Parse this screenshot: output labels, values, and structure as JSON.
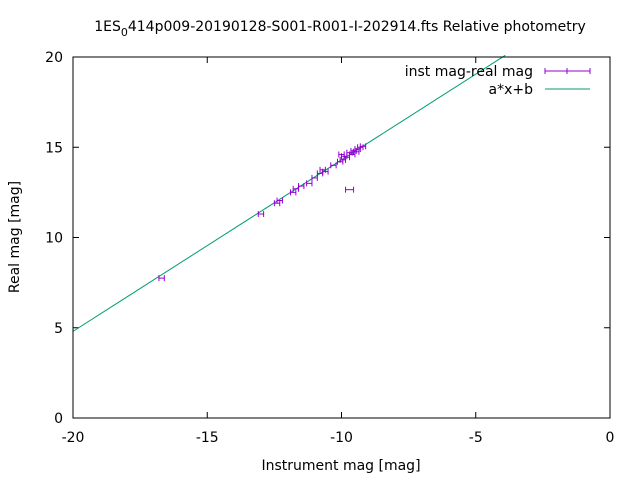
{
  "chart_data": {
    "type": "scatter",
    "title_main": "1ES",
    "title_sub": "0",
    "title_rest": "414p009-20190128-S001-R001-I-202914.fts Relative photometry",
    "xlabel": "Instrument mag [mag]",
    "ylabel": "Real mag [mag]",
    "xlim": [
      -20,
      0
    ],
    "ylim": [
      0,
      20
    ],
    "xticks": [
      "-20",
      "-15",
      "-10",
      "-5",
      "0"
    ],
    "xtick_values": [
      -20,
      -15,
      -10,
      -5,
      0
    ],
    "yticks": [
      "0",
      "5",
      "10",
      "15",
      "20"
    ],
    "ytick_values": [
      0,
      5,
      10,
      15,
      20
    ],
    "legend_position": "top-right",
    "colors": {
      "data": "#9400d3",
      "fit": "#009e73",
      "axis": "#000000"
    },
    "series": [
      {
        "name": "inst mag-real mag",
        "style": "xerrorbars",
        "points": [
          {
            "x": -16.7,
            "y": 7.75,
            "xerr": 0.1
          },
          {
            "x": -13.0,
            "y": 11.3,
            "xerr": 0.1
          },
          {
            "x": -12.4,
            "y": 11.9,
            "xerr": 0.1
          },
          {
            "x": -12.3,
            "y": 12.05,
            "xerr": 0.1
          },
          {
            "x": -11.8,
            "y": 12.5,
            "xerr": 0.1
          },
          {
            "x": -11.7,
            "y": 12.7,
            "xerr": 0.1
          },
          {
            "x": -11.5,
            "y": 12.85,
            "xerr": 0.1
          },
          {
            "x": -11.2,
            "y": 13.0,
            "xerr": 0.1
          },
          {
            "x": -11.0,
            "y": 13.3,
            "xerr": 0.1
          },
          {
            "x": -10.8,
            "y": 13.55,
            "xerr": 0.1
          },
          {
            "x": -10.7,
            "y": 13.75,
            "xerr": 0.1
          },
          {
            "x": -10.6,
            "y": 13.65,
            "xerr": 0.1
          },
          {
            "x": -10.3,
            "y": 14.0,
            "xerr": 0.1
          },
          {
            "x": -10.05,
            "y": 14.2,
            "xerr": 0.1
          },
          {
            "x": -9.95,
            "y": 14.3,
            "xerr": 0.1
          },
          {
            "x": -9.9,
            "y": 14.5,
            "xerr": 0.1
          },
          {
            "x": -10.0,
            "y": 14.6,
            "xerr": 0.1
          },
          {
            "x": -9.8,
            "y": 14.45,
            "xerr": 0.1
          },
          {
            "x": -9.7,
            "y": 14.7,
            "xerr": 0.1
          },
          {
            "x": -9.6,
            "y": 14.6,
            "xerr": 0.1
          },
          {
            "x": -9.55,
            "y": 14.8,
            "xerr": 0.1
          },
          {
            "x": -9.45,
            "y": 14.75,
            "xerr": 0.1
          },
          {
            "x": -9.4,
            "y": 14.9,
            "xerr": 0.1
          },
          {
            "x": -9.3,
            "y": 15.0,
            "xerr": 0.1
          },
          {
            "x": -9.2,
            "y": 15.05,
            "xerr": 0.1
          },
          {
            "x": -9.7,
            "y": 12.65,
            "xerr": 0.15
          }
        ]
      },
      {
        "name": "a*x+b",
        "style": "line",
        "x_range": [
          -20,
          -3.9
        ],
        "slope": 0.95,
        "intercept": 23.8
      }
    ]
  }
}
